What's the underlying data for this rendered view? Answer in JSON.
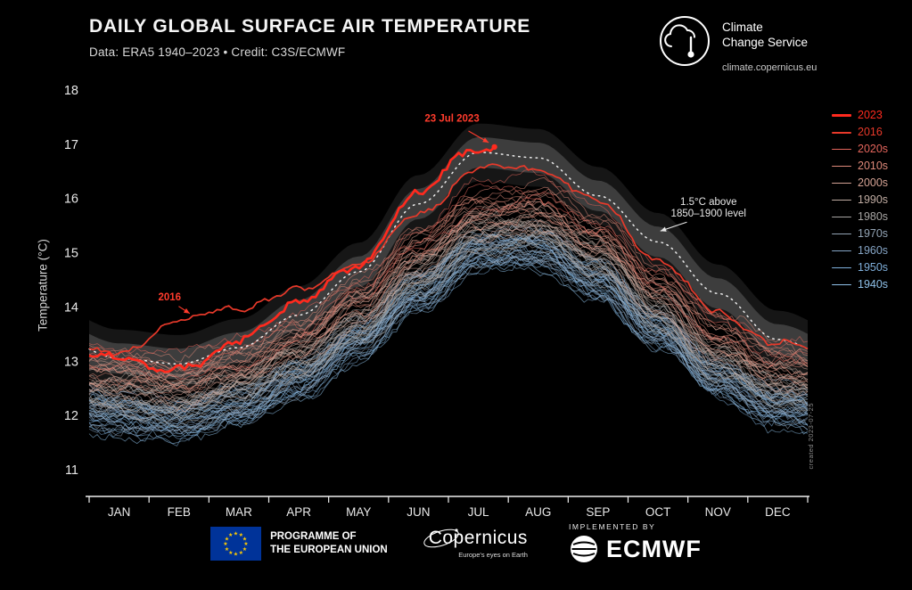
{
  "header": {
    "title": "DAILY GLOBAL SURFACE AIR TEMPERATURE",
    "subtitle": "Data: ERA5 1940–2023 • Credit: C3S/ECMWF"
  },
  "logo": {
    "line1": "Climate",
    "line2": "Change Service",
    "url": "climate.copernicus.eu"
  },
  "watermark": "created 2023-07-25",
  "legend": {
    "position": "right",
    "items": [
      {
        "label": "2023",
        "color": "#ff2a1e",
        "weight": 3
      },
      {
        "label": "2016",
        "color": "#e8392a",
        "weight": 2
      },
      {
        "label": "2020s",
        "color": "#e4655c",
        "weight": 1.4
      },
      {
        "label": "2010s",
        "color": "#df8a7a",
        "weight": 1.4
      },
      {
        "label": "2000s",
        "color": "#d4a294",
        "weight": 1.4
      },
      {
        "label": "1990s",
        "color": "#c0aca2",
        "weight": 1.4
      },
      {
        "label": "1980s",
        "color": "#a8a6a4",
        "weight": 1.4
      },
      {
        "label": "1970s",
        "color": "#93a4b5",
        "weight": 1.4
      },
      {
        "label": "1960s",
        "color": "#86a5c6",
        "weight": 1.4
      },
      {
        "label": "1950s",
        "color": "#7fafdb",
        "weight": 1.4
      },
      {
        "label": "1940s",
        "color": "#8fc1e9",
        "weight": 1.4
      }
    ]
  },
  "footer": {
    "eu_line1": "PROGRAMME OF",
    "eu_line2": "THE EUROPEAN UNION",
    "copernicus": "Copernicus",
    "copernicus_tagline": "Europe's eyes on Earth",
    "implemented_by": "IMPLEMENTED BY",
    "ecmwf": "ECMWF"
  },
  "chart_data": {
    "type": "line",
    "title": "DAILY GLOBAL SURFACE AIR TEMPERATURE",
    "subtitle": "Data: ERA5 1940–2023 • Credit: C3S/ECMWF",
    "xlabel": "",
    "ylabel": "Temperature (°C)",
    "categories": [
      "JAN",
      "FEB",
      "MAR",
      "APR",
      "MAY",
      "JUN",
      "JUL",
      "AUG",
      "SEP",
      "OCT",
      "NOV",
      "DEC"
    ],
    "yticks": [
      11,
      12,
      13,
      14,
      15,
      16,
      17,
      18
    ],
    "ylim": [
      11,
      18
    ],
    "grid": false,
    "legend_position": "right",
    "threshold": {
      "label": "1.5°C above 1850–1900 level",
      "line_style": "dotted",
      "color": "#ffffff",
      "band_color": "#636363",
      "band_halfwidth": 0.28,
      "monthly": [
        13.05,
        12.95,
        13.25,
        13.85,
        14.65,
        15.9,
        16.85,
        16.75,
        16.05,
        15.2,
        14.25,
        13.4
      ]
    },
    "decades": [
      {
        "name": "1940s",
        "color": "#8fc1e9",
        "years": 10,
        "monthly": [
          11.95,
          11.85,
          12.1,
          12.6,
          13.3,
          14.2,
          14.95,
          15.0,
          14.45,
          13.5,
          12.6,
          12.1
        ]
      },
      {
        "name": "1950s",
        "color": "#7fafdb",
        "years": 10,
        "monthly": [
          12.0,
          11.9,
          12.15,
          12.65,
          13.35,
          14.25,
          15.0,
          15.05,
          14.5,
          13.55,
          12.65,
          12.15
        ]
      },
      {
        "name": "1960s",
        "color": "#86a5c6",
        "years": 10,
        "monthly": [
          12.05,
          11.95,
          12.2,
          12.7,
          13.4,
          14.3,
          15.05,
          15.1,
          14.55,
          13.6,
          12.7,
          12.2
        ]
      },
      {
        "name": "1970s",
        "color": "#93a4b5",
        "years": 10,
        "monthly": [
          12.1,
          12.0,
          12.25,
          12.75,
          13.45,
          14.35,
          15.1,
          15.15,
          14.6,
          13.65,
          12.75,
          12.25
        ]
      },
      {
        "name": "1980s",
        "color": "#a8a6a4",
        "years": 10,
        "monthly": [
          12.3,
          12.2,
          12.45,
          12.95,
          13.65,
          14.55,
          15.3,
          15.35,
          14.8,
          13.85,
          12.95,
          12.45
        ]
      },
      {
        "name": "1990s",
        "color": "#c0aca2",
        "years": 10,
        "monthly": [
          12.45,
          12.35,
          12.6,
          13.1,
          13.8,
          14.7,
          15.45,
          15.5,
          14.95,
          14.0,
          13.1,
          12.6
        ]
      },
      {
        "name": "2000s",
        "color": "#d4a294",
        "years": 10,
        "monthly": [
          12.65,
          12.55,
          12.8,
          13.3,
          14.0,
          14.9,
          15.65,
          15.7,
          15.15,
          14.2,
          13.3,
          12.8
        ]
      },
      {
        "name": "2010s",
        "color": "#df8a7a",
        "years": 10,
        "monthly": [
          12.85,
          12.75,
          13.0,
          13.5,
          14.2,
          15.1,
          15.9,
          15.95,
          15.4,
          14.45,
          13.55,
          13.05
        ]
      },
      {
        "name": "2020s",
        "color": "#e4655c",
        "years": 3,
        "monthly": [
          13.0,
          12.9,
          13.15,
          13.65,
          14.35,
          15.25,
          16.1,
          16.15,
          15.55,
          14.6,
          13.7,
          13.2
        ]
      }
    ],
    "highlight_years": [
      {
        "name": "2016",
        "color": "#e8392a",
        "width": 1.7,
        "noise": 0.1,
        "monthly": [
          13.15,
          13.7,
          13.95,
          14.3,
          14.85,
          15.75,
          16.55,
          16.5,
          15.9,
          14.9,
          13.95,
          13.35
        ]
      },
      {
        "name": "2023",
        "color": "#ff2a1e",
        "width": 2.7,
        "noise": 0.13,
        "end_fraction": 0.564,
        "monthly": [
          13.05,
          12.9,
          13.35,
          14.05,
          14.85,
          16.15,
          16.85,
          17.05
        ]
      }
    ],
    "annotations": [
      {
        "text": "23 Jul 2023",
        "color": "#ff3b2c",
        "bold": true,
        "text_t": 0.505,
        "text_v": 17.42,
        "tip_t": 0.556,
        "tip_v": 17.03
      },
      {
        "text": "2016",
        "color": "#ff3b2c",
        "bold": true,
        "text_t": 0.112,
        "text_v": 14.12,
        "tip_t": 0.14,
        "tip_v": 13.88
      },
      {
        "text": "1.5°C above\n1850–1900 level",
        "color": "#e8e8e8",
        "bold": false,
        "text_t": 0.862,
        "text_v": 15.88,
        "tip_t": 0.795,
        "tip_v": 15.4
      }
    ]
  }
}
